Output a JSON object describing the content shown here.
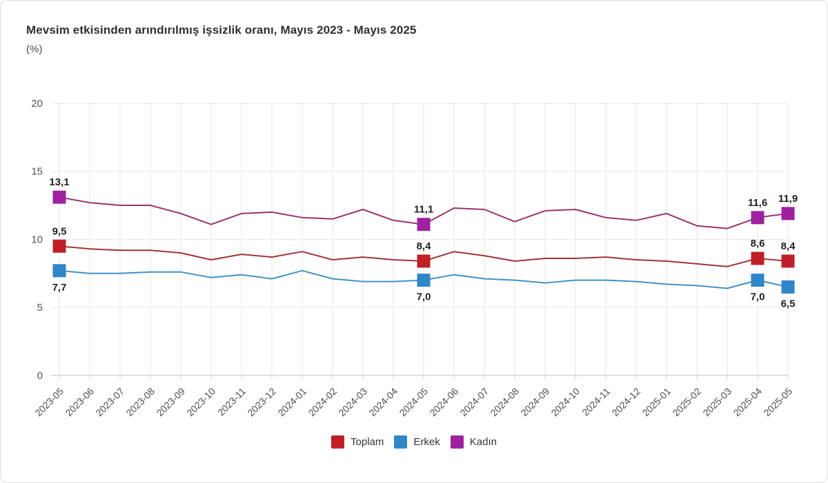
{
  "page": {
    "title": "Mevsim etkisinden arındırılmış işsizlik oranı, Mayıs 2023 - Mayıs 2025",
    "unit_label": "(%)"
  },
  "chart_data": {
    "type": "line",
    "title": "Mevsim etkisinden arındırılmış işsizlik oranı, Mayıs 2023 - Mayıs 2025",
    "ylabel": "(%)",
    "ylim": [
      0,
      20
    ],
    "yticks": [
      0,
      5,
      10,
      15,
      20
    ],
    "grid": true,
    "legend_position": "bottom-center",
    "decimal_separator": ",",
    "x_label_rotation": -45,
    "categories": [
      "2023-05",
      "2023-06",
      "2023-07",
      "2023-08",
      "2023-09",
      "2023-10",
      "2023-11",
      "2023-12",
      "2024-01",
      "2024-02",
      "2024-03",
      "2024-04",
      "2024-05",
      "2024-06",
      "2024-07",
      "2024-08",
      "2024-09",
      "2024-10",
      "2024-11",
      "2024-12",
      "2025-01",
      "2025-02",
      "2025-03",
      "2025-04",
      "2025-05"
    ],
    "series": [
      {
        "id": "toplam",
        "name": "Toplam",
        "marker_color": "#c01f28",
        "line_color": "#a23238",
        "label_position": "above",
        "values": [
          9.5,
          9.3,
          9.2,
          9.2,
          9.0,
          8.5,
          8.9,
          8.7,
          9.1,
          8.5,
          8.7,
          8.5,
          8.4,
          9.1,
          8.8,
          8.4,
          8.6,
          8.6,
          8.7,
          8.5,
          8.4,
          8.2,
          8.0,
          8.6,
          8.4
        ]
      },
      {
        "id": "erkek",
        "name": "Erkek",
        "marker_color": "#2f86c8",
        "line_color": "#4191c6",
        "label_position": "below",
        "values": [
          7.7,
          7.5,
          7.5,
          7.6,
          7.6,
          7.2,
          7.4,
          7.1,
          7.7,
          7.1,
          6.9,
          6.9,
          7.0,
          7.4,
          7.1,
          7.0,
          6.8,
          7.0,
          7.0,
          6.9,
          6.7,
          6.6,
          6.4,
          7.0,
          6.5
        ]
      },
      {
        "id": "kadin",
        "name": "Kadın",
        "marker_color": "#9e21a0",
        "line_color": "#9a3368",
        "label_position": "above",
        "values": [
          13.1,
          12.7,
          12.5,
          12.5,
          11.9,
          11.1,
          11.9,
          12.0,
          11.6,
          11.5,
          12.2,
          11.4,
          11.1,
          12.3,
          12.2,
          11.3,
          12.1,
          12.2,
          11.6,
          11.4,
          11.9,
          11.0,
          10.8,
          11.6,
          11.9
        ]
      }
    ],
    "labeled_categories": [
      "2023-05",
      "2024-05",
      "2025-04",
      "2025-05"
    ],
    "labeled_points": [
      {
        "category": "2023-05",
        "labels": {
          "Toplam": "9,5",
          "Erkek": "7,7",
          "Kadın": "13,1"
        }
      },
      {
        "category": "2024-05",
        "labels": {
          "Toplam": "8,4",
          "Erkek": "7,0",
          "Kadın": "11,1"
        }
      },
      {
        "category": "2025-04",
        "labels": {
          "Toplam": "8,6",
          "Erkek": "7,0",
          "Kadın": "11,6"
        }
      },
      {
        "category": "2025-05",
        "labels": {
          "Toplam": "8,4",
          "Erkek": "6,5",
          "Kadın": "11,9"
        }
      }
    ],
    "legend_items": [
      "Toplam",
      "Erkek",
      "Kadın"
    ]
  },
  "style": {
    "grid_color": "#e6e6e6",
    "axis_color": "#c5c5c5",
    "tick_color": "#d0d0d0",
    "axis_label_color": "#4d4d4d",
    "y_label_color": "#555555",
    "data_label_color": "#1f1f1f",
    "legend_text_color": "#333333"
  }
}
